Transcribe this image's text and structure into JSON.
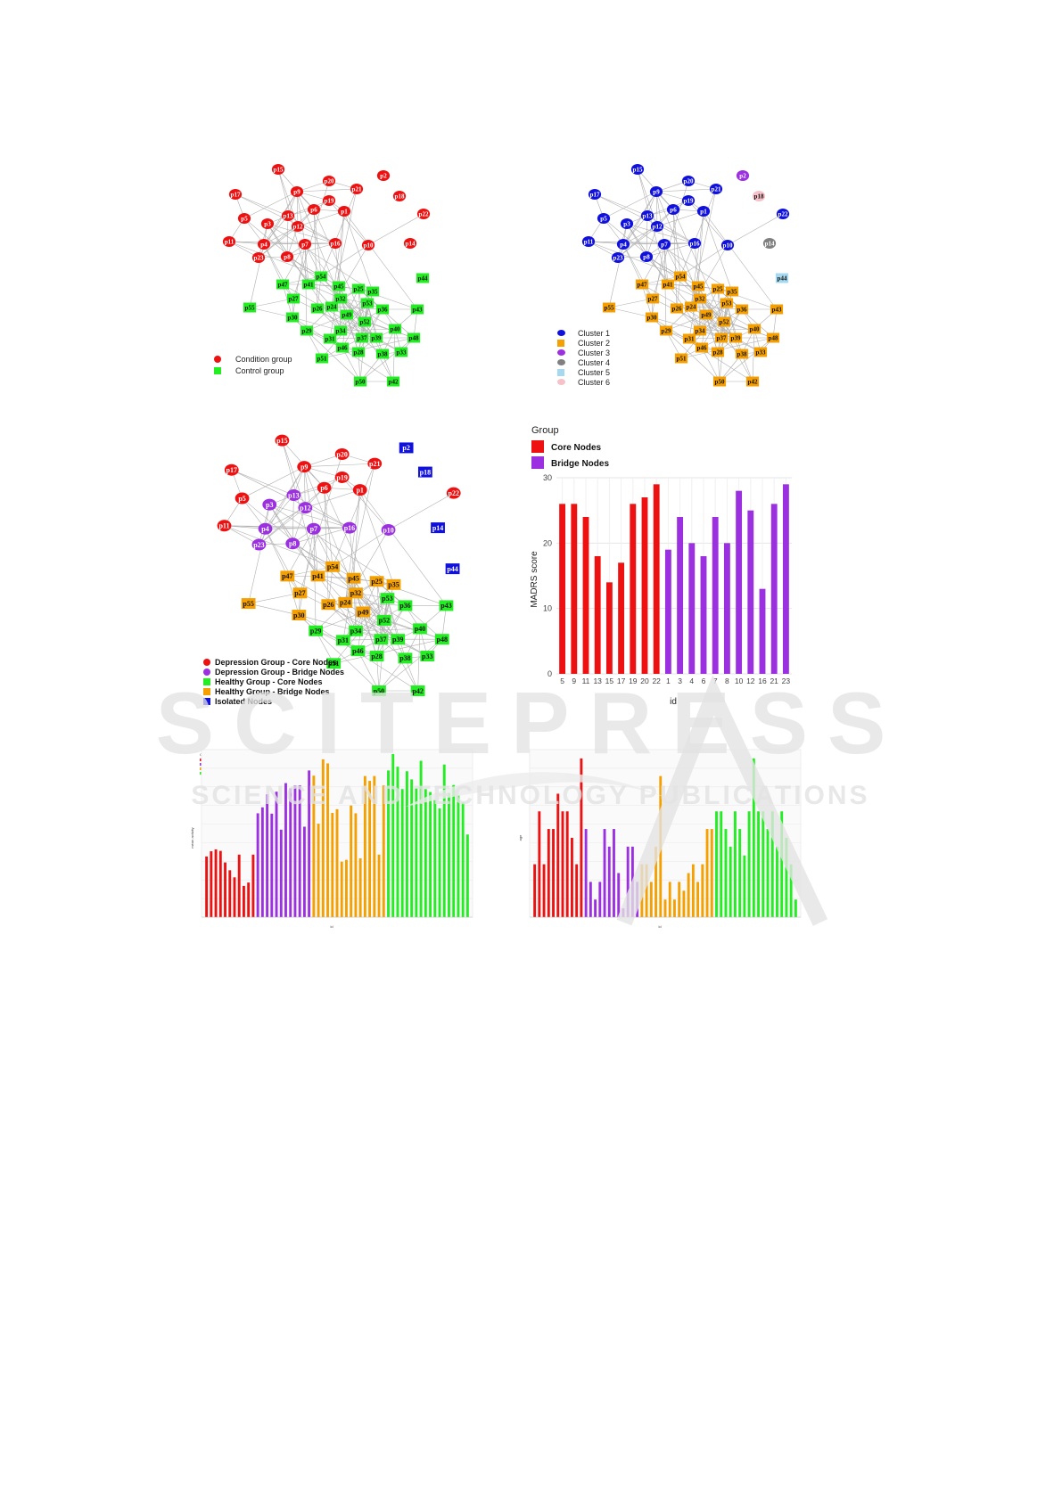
{
  "panels": {
    "network_a": {
      "legend": [
        {
          "label": "Condition group",
          "color": "#ee1111",
          "shape": "circle"
        },
        {
          "label": "Control group",
          "color": "#22ee22",
          "shape": "square"
        }
      ]
    },
    "network_b": {
      "legend": [
        {
          "label": "Cluster 1",
          "color": "#1111dd",
          "shape": "circle"
        },
        {
          "label": "Cluster 2",
          "color": "#f5a000",
          "shape": "square"
        },
        {
          "label": "Cluster 3",
          "color": "#9b30e0",
          "shape": "circle"
        },
        {
          "label": "Cluster 4",
          "color": "#808080",
          "shape": "circle"
        },
        {
          "label": "Cluster 5",
          "color": "#a6d8f0",
          "shape": "square"
        },
        {
          "label": "Cluster 6",
          "color": "#f7c1c9",
          "shape": "circle"
        }
      ]
    },
    "network_c": {
      "legend": [
        {
          "label": "Depression Group - Core Nodes",
          "color": "#ee1111",
          "shape": "circle"
        },
        {
          "label": "Depression Group - Bridge Nodes",
          "color": "#9b30e0",
          "shape": "circle"
        },
        {
          "label": "Healthy Group - Core Nodes",
          "color": "#22ee22",
          "shape": "square"
        },
        {
          "label": "Healthy Group - Bridge Nodes",
          "color": "#f5a000",
          "shape": "square"
        },
        {
          "label": "Isolated Nodes",
          "color": "#1111dd",
          "shape": "square"
        }
      ]
    }
  },
  "node_colors": {
    "depression_core": "#ee1111",
    "depression_bridge": "#9b30e0",
    "healthy_core": "#22ee22",
    "healthy_bridge": "#f5a000",
    "isolated": "#1111dd",
    "cluster1": "#1111dd",
    "cluster2": "#f5a000",
    "cluster3": "#9b30e0",
    "cluster4": "#808080",
    "cluster5": "#a6d8f0",
    "cluster6": "#f7c1c9",
    "edge": "#b0b0b0"
  },
  "watermark": {
    "line1": "SCITEPRESS",
    "line2": "SCIENCE AND TECHNOLOGY PUBLICATIONS"
  },
  "chart_data": [
    {
      "type": "bar",
      "legend_title": "Group",
      "legend": [
        {
          "name": "Core Nodes",
          "color": "#ee1111"
        },
        {
          "name": "Bridge Nodes",
          "color": "#9b30e0"
        }
      ],
      "categories": [
        "5",
        "9",
        "11",
        "13",
        "15",
        "17",
        "19",
        "20",
        "22",
        "1",
        "3",
        "4",
        "6",
        "7",
        "8",
        "10",
        "12",
        "16",
        "21",
        "23"
      ],
      "values": [
        26,
        26,
        24,
        18,
        14,
        17,
        26,
        27,
        29,
        19,
        24,
        20,
        18,
        24,
        20,
        28,
        25,
        13,
        26,
        29
      ],
      "groups": [
        "Core Nodes",
        "Core Nodes",
        "Core Nodes",
        "Core Nodes",
        "Core Nodes",
        "Core Nodes",
        "Core Nodes",
        "Core Nodes",
        "Core Nodes",
        "Bridge Nodes",
        "Bridge Nodes",
        "Bridge Nodes",
        "Bridge Nodes",
        "Bridge Nodes",
        "Bridge Nodes",
        "Bridge Nodes",
        "Bridge Nodes",
        "Bridge Nodes",
        "Bridge Nodes",
        "Bridge Nodes"
      ],
      "xlabel": "id",
      "ylabel": "MADRS score",
      "ylim": [
        0,
        30
      ],
      "yticks": [
        0,
        10,
        20,
        30
      ],
      "grid": true,
      "legend_position": "top-left"
    },
    {
      "type": "bar",
      "legend_title": "Group",
      "legend": [
        {
          "name": "Depression Group - Core Nodes",
          "color": "#ee1111"
        },
        {
          "name": "Depression Group - Bridge Nodes",
          "color": "#9b30e0"
        },
        {
          "name": "Healthy Group - Core Nodes",
          "color": "#f5a000"
        },
        {
          "name": "Healthy Group - Bridge Nodes",
          "color": "#22ee22"
        }
      ],
      "group_counts": [
        11,
        12,
        16,
        18
      ],
      "values": [
        163,
        177,
        182,
        178,
        147,
        126,
        107,
        168,
        84,
        93,
        168,
        279,
        295,
        330,
        278,
        337,
        235,
        360,
        346,
        354,
        354,
        243,
        394,
        380,
        251,
        424,
        413,
        280,
        290,
        149,
        154,
        300,
        279,
        158,
        379,
        366,
        379,
        168,
        354,
        394,
        438,
        404,
        344,
        392,
        370,
        346,
        420,
        344,
        336,
        316,
        292,
        410,
        334,
        355,
        328,
        308,
        222
      ],
      "xlabel": "id",
      "ylabel": "mean activity",
      "ylim": [
        0,
        450
      ],
      "grid": true,
      "legend_position": "top-left"
    },
    {
      "type": "bar",
      "legend_title": "Group",
      "legend": [
        {
          "name": "Depression Group - Core Nodes",
          "color": "#ee1111"
        },
        {
          "name": "Depression Group - Bridge Nodes",
          "color": "#9b30e0"
        },
        {
          "name": "Healthy Group - Core Nodes",
          "color": "#f5a000"
        },
        {
          "name": "Healthy Group - Bridge Nodes",
          "color": "#22ee22"
        }
      ],
      "group_counts": [
        11,
        12,
        16,
        18
      ],
      "values": [
        30,
        60,
        30,
        50,
        50,
        70,
        60,
        60,
        45,
        30,
        90,
        50,
        20,
        10,
        20,
        50,
        40,
        50,
        25,
        5,
        40,
        40,
        20,
        30,
        30,
        20,
        40,
        80,
        10,
        20,
        10,
        20,
        15,
        25,
        30,
        20,
        30,
        50,
        50,
        60,
        60,
        50,
        40,
        60,
        50,
        35,
        60,
        90,
        60,
        60,
        50,
        60,
        40,
        60,
        45,
        30,
        10
      ],
      "xlabel": "id",
      "ylabel": "age",
      "ylim": [
        0,
        95
      ],
      "grid": true,
      "legend_position": "top-right"
    }
  ]
}
